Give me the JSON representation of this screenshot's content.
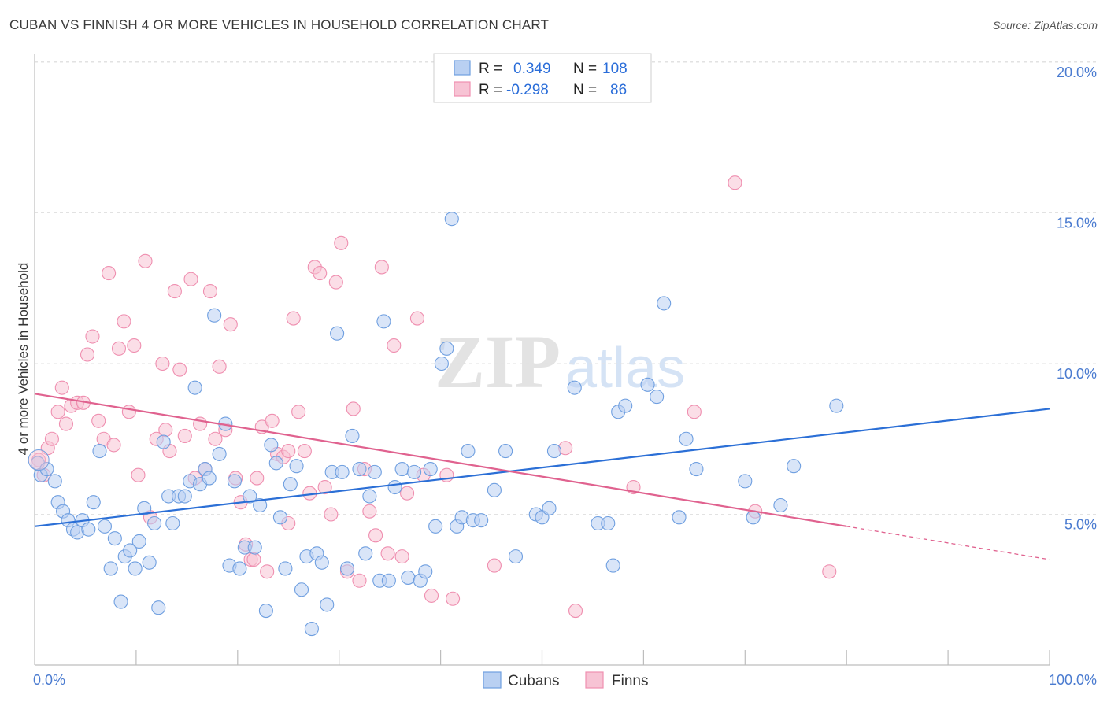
{
  "title": "CUBAN VS FINNISH 4 OR MORE VEHICLES IN HOUSEHOLD CORRELATION CHART",
  "source": "Source: ZipAtlas.com",
  "colors": {
    "cubans": "#6f9fe0",
    "cubans_fill": "#b9d0f2",
    "finns": "#ef8fb0",
    "finns_fill": "#f7c3d4",
    "cubans_line": "#2b6fd6",
    "finns_line": "#e0628f"
  },
  "legend_top": {
    "rows": [
      {
        "r_label": "R =",
        "r_value": "0.349",
        "n_label": "N =",
        "n_value": "108"
      },
      {
        "r_label": "R =",
        "r_value": "-0.298",
        "n_label": "N =",
        "n_value": "86"
      }
    ]
  },
  "legend_bottom": {
    "cubans": "Cubans",
    "finns": "Finns"
  },
  "watermark": {
    "zip": "ZIP",
    "atlas": "atlas"
  },
  "chart_data": {
    "type": "scatter",
    "title": "CUBAN VS FINNISH 4 OR MORE VEHICLES IN HOUSEHOLD CORRELATION CHART",
    "xlabel": "",
    "ylabel": "4 or more Vehicles in Household",
    "xlim": [
      0,
      100
    ],
    "ylim": [
      0,
      20.5
    ],
    "x_tick_labels": [
      "0.0%",
      "100.0%"
    ],
    "y_ticks": [
      5,
      10,
      15,
      20
    ],
    "y_tick_labels": [
      "5.0%",
      "10.0%",
      "15.0%",
      "20.0%"
    ],
    "grid": true,
    "legend_position": "top-center",
    "series": [
      {
        "name": "Cubans",
        "r": 0.349,
        "n": 108,
        "trend": {
          "x": [
            0,
            100
          ],
          "y": [
            4.6,
            8.5
          ]
        },
        "points": [
          [
            0.3,
            6.7
          ],
          [
            0.6,
            6.3
          ],
          [
            1.2,
            6.5
          ],
          [
            2,
            6.1
          ],
          [
            2.3,
            5.4
          ],
          [
            2.8,
            5.1
          ],
          [
            3.3,
            4.8
          ],
          [
            3.8,
            4.5
          ],
          [
            4.2,
            4.4
          ],
          [
            4.7,
            4.8
          ],
          [
            5.3,
            4.5
          ],
          [
            5.8,
            5.4
          ],
          [
            6.4,
            7.1
          ],
          [
            6.9,
            4.6
          ],
          [
            7.5,
            3.2
          ],
          [
            7.9,
            4.2
          ],
          [
            8.5,
            2.1
          ],
          [
            8.9,
            3.6
          ],
          [
            9.4,
            3.8
          ],
          [
            9.9,
            3.2
          ],
          [
            10.3,
            4.1
          ],
          [
            10.8,
            5.2
          ],
          [
            11.3,
            3.4
          ],
          [
            11.8,
            4.7
          ],
          [
            12.2,
            1.9
          ],
          [
            12.7,
            7.4
          ],
          [
            13.2,
            5.6
          ],
          [
            13.6,
            4.7
          ],
          [
            14.2,
            5.6
          ],
          [
            14.8,
            5.6
          ],
          [
            15.3,
            6.1
          ],
          [
            15.8,
            9.2
          ],
          [
            16.3,
            6.0
          ],
          [
            16.8,
            6.5
          ],
          [
            17.2,
            6.2
          ],
          [
            17.7,
            11.6
          ],
          [
            18.2,
            7.0
          ],
          [
            18.8,
            8.0
          ],
          [
            19.2,
            3.3
          ],
          [
            19.7,
            6.1
          ],
          [
            20.2,
            3.2
          ],
          [
            20.7,
            3.9
          ],
          [
            21.2,
            5.6
          ],
          [
            21.7,
            3.9
          ],
          [
            22.2,
            5.3
          ],
          [
            22.8,
            1.8
          ],
          [
            23.3,
            7.3
          ],
          [
            23.8,
            6.7
          ],
          [
            24.2,
            4.9
          ],
          [
            24.7,
            3.2
          ],
          [
            25.2,
            6.0
          ],
          [
            25.8,
            6.6
          ],
          [
            26.3,
            2.5
          ],
          [
            26.8,
            3.6
          ],
          [
            27.3,
            1.2
          ],
          [
            27.8,
            3.7
          ],
          [
            28.3,
            3.4
          ],
          [
            28.8,
            2.0
          ],
          [
            29.3,
            6.4
          ],
          [
            29.8,
            11.0
          ],
          [
            30.3,
            6.4
          ],
          [
            30.8,
            3.2
          ],
          [
            31.3,
            7.6
          ],
          [
            32.0,
            6.5
          ],
          [
            32.6,
            3.7
          ],
          [
            33.0,
            5.6
          ],
          [
            33.5,
            6.4
          ],
          [
            34.0,
            2.8
          ],
          [
            34.4,
            11.4
          ],
          [
            34.9,
            2.8
          ],
          [
            35.5,
            5.9
          ],
          [
            36.2,
            6.5
          ],
          [
            36.8,
            2.9
          ],
          [
            37.4,
            6.4
          ],
          [
            38.0,
            2.8
          ],
          [
            38.5,
            3.1
          ],
          [
            39.0,
            6.5
          ],
          [
            39.5,
            4.6
          ],
          [
            40.1,
            10.0
          ],
          [
            40.6,
            10.5
          ],
          [
            41.1,
            14.8
          ],
          [
            41.6,
            4.6
          ],
          [
            42.1,
            4.9
          ],
          [
            42.7,
            7.1
          ],
          [
            43.2,
            4.8
          ],
          [
            44.0,
            4.8
          ],
          [
            45.3,
            5.8
          ],
          [
            46.4,
            7.1
          ],
          [
            47.4,
            3.6
          ],
          [
            49.4,
            5.0
          ],
          [
            50.0,
            4.9
          ],
          [
            50.7,
            5.2
          ],
          [
            51.2,
            7.1
          ],
          [
            53.2,
            9.2
          ],
          [
            55.5,
            4.7
          ],
          [
            56.5,
            4.7
          ],
          [
            57.0,
            3.3
          ],
          [
            57.5,
            8.4
          ],
          [
            58.2,
            8.6
          ],
          [
            60.4,
            9.3
          ],
          [
            61.3,
            8.9
          ],
          [
            62.0,
            12.0
          ],
          [
            63.5,
            4.9
          ],
          [
            64.2,
            7.5
          ],
          [
            65.2,
            6.5
          ],
          [
            70.0,
            6.1
          ],
          [
            70.8,
            4.9
          ],
          [
            73.5,
            5.3
          ],
          [
            74.8,
            6.6
          ],
          [
            79.0,
            8.6
          ]
        ]
      },
      {
        "name": "Finns",
        "r": -0.298,
        "n": 86,
        "trend": {
          "x": [
            0,
            80
          ],
          "y": [
            9.0,
            4.6
          ]
        },
        "trend_dashed": {
          "x": [
            80,
            100
          ],
          "y": [
            4.6,
            3.5
          ]
        },
        "points": [
          [
            0.4,
            6.8
          ],
          [
            0.9,
            6.3
          ],
          [
            1.3,
            7.2
          ],
          [
            1.7,
            7.5
          ],
          [
            2.3,
            8.4
          ],
          [
            2.7,
            9.2
          ],
          [
            3.1,
            8.0
          ],
          [
            3.6,
            8.6
          ],
          [
            4.2,
            8.7
          ],
          [
            4.8,
            8.7
          ],
          [
            5.2,
            10.3
          ],
          [
            5.7,
            10.9
          ],
          [
            6.3,
            8.1
          ],
          [
            6.8,
            7.5
          ],
          [
            7.3,
            13.0
          ],
          [
            7.8,
            7.3
          ],
          [
            8.3,
            10.5
          ],
          [
            8.8,
            11.4
          ],
          [
            9.3,
            8.4
          ],
          [
            9.8,
            10.6
          ],
          [
            10.2,
            6.3
          ],
          [
            10.9,
            13.4
          ],
          [
            11.4,
            4.9
          ],
          [
            12.0,
            7.5
          ],
          [
            12.6,
            10.0
          ],
          [
            12.9,
            7.8
          ],
          [
            13.3,
            7.1
          ],
          [
            13.8,
            12.4
          ],
          [
            14.3,
            9.8
          ],
          [
            14.8,
            7.6
          ],
          [
            15.4,
            12.8
          ],
          [
            15.8,
            6.2
          ],
          [
            16.3,
            8.0
          ],
          [
            16.8,
            6.5
          ],
          [
            17.3,
            12.4
          ],
          [
            17.8,
            7.5
          ],
          [
            18.2,
            9.9
          ],
          [
            18.8,
            7.8
          ],
          [
            19.3,
            11.3
          ],
          [
            19.8,
            6.2
          ],
          [
            20.3,
            5.4
          ],
          [
            20.8,
            4.0
          ],
          [
            21.3,
            3.5
          ],
          [
            21.9,
            6.2
          ],
          [
            22.4,
            7.9
          ],
          [
            22.9,
            3.1
          ],
          [
            23.4,
            8.1
          ],
          [
            23.9,
            7.0
          ],
          [
            24.5,
            6.9
          ],
          [
            25.0,
            4.7
          ],
          [
            25.5,
            11.5
          ],
          [
            26.0,
            8.4
          ],
          [
            26.6,
            7.1
          ],
          [
            27.1,
            5.7
          ],
          [
            27.6,
            13.2
          ],
          [
            28.1,
            13.0
          ],
          [
            28.6,
            5.9
          ],
          [
            29.2,
            5.0
          ],
          [
            29.7,
            12.7
          ],
          [
            30.2,
            14.0
          ],
          [
            30.8,
            3.1
          ],
          [
            31.4,
            8.5
          ],
          [
            32.0,
            2.8
          ],
          [
            32.5,
            6.5
          ],
          [
            33.0,
            5.1
          ],
          [
            33.6,
            4.3
          ],
          [
            34.2,
            13.2
          ],
          [
            34.8,
            3.7
          ],
          [
            35.4,
            10.6
          ],
          [
            36.2,
            3.6
          ],
          [
            36.7,
            5.7
          ],
          [
            37.7,
            11.5
          ],
          [
            38.3,
            6.3
          ],
          [
            39.1,
            2.3
          ],
          [
            40.6,
            6.3
          ],
          [
            41.2,
            2.2
          ],
          [
            45.3,
            3.3
          ],
          [
            52.3,
            7.2
          ],
          [
            53.3,
            1.8
          ],
          [
            59.0,
            5.9
          ],
          [
            65.0,
            8.4
          ],
          [
            69.0,
            16.0
          ],
          [
            71.0,
            5.1
          ],
          [
            78.3,
            3.1
          ],
          [
            21.6,
            3.5
          ],
          [
            25.0,
            7.1
          ]
        ]
      }
    ]
  }
}
